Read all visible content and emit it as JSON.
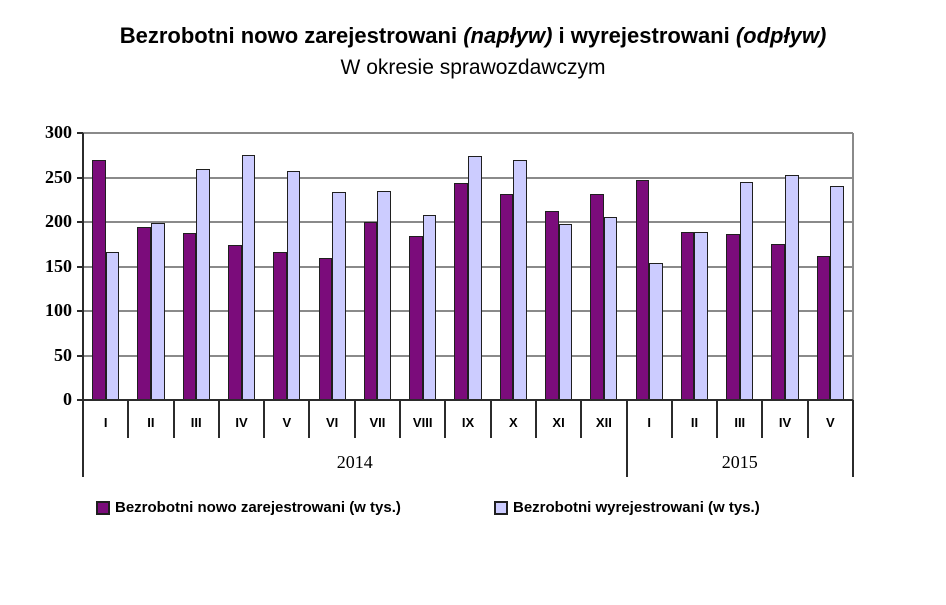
{
  "header": {
    "title_normal1": "Bezrobotni nowo zarejestrowani ",
    "title_italic1": "(napływ)",
    "title_normal2": " i wyrejestrowani ",
    "title_italic2": "(odpływ)",
    "subtitle": "W okresie sprawozdawczym"
  },
  "chart_data": {
    "type": "bar",
    "title": "Bezrobotni nowo zarejestrowani (napływ) i wyrejestrowani (odpływ)",
    "subtitle": "W okresie sprawozdawczym",
    "categories": [
      "I",
      "II",
      "III",
      "IV",
      "V",
      "VI",
      "VII",
      "VIII",
      "IX",
      "X",
      "XI",
      "XII",
      "I",
      "II",
      "III",
      "IV",
      "V"
    ],
    "year_groups": [
      {
        "label": "2014",
        "span": 12
      },
      {
        "label": "2015",
        "span": 5
      }
    ],
    "series": [
      {
        "name": "Bezrobotni nowo zarejestrowani (w tys.)",
        "color": "#7B0C7B",
        "values": [
          270,
          195,
          188,
          174,
          167,
          160,
          200,
          184,
          244,
          232,
          213,
          232,
          247,
          189,
          187,
          175,
          162
        ]
      },
      {
        "name": "Bezrobotni wyrejestrowani (w tys.)",
        "color": "#CCCCFF",
        "values": [
          166,
          199,
          260,
          276,
          258,
          234,
          235,
          208,
          274,
          270,
          198,
          206,
          154,
          189,
          245,
          253,
          241
        ]
      }
    ],
    "ylim": [
      0,
      300
    ],
    "yticks": [
      0,
      50,
      100,
      150,
      200,
      250,
      300
    ],
    "grid": true,
    "legend_position": "bottom"
  }
}
